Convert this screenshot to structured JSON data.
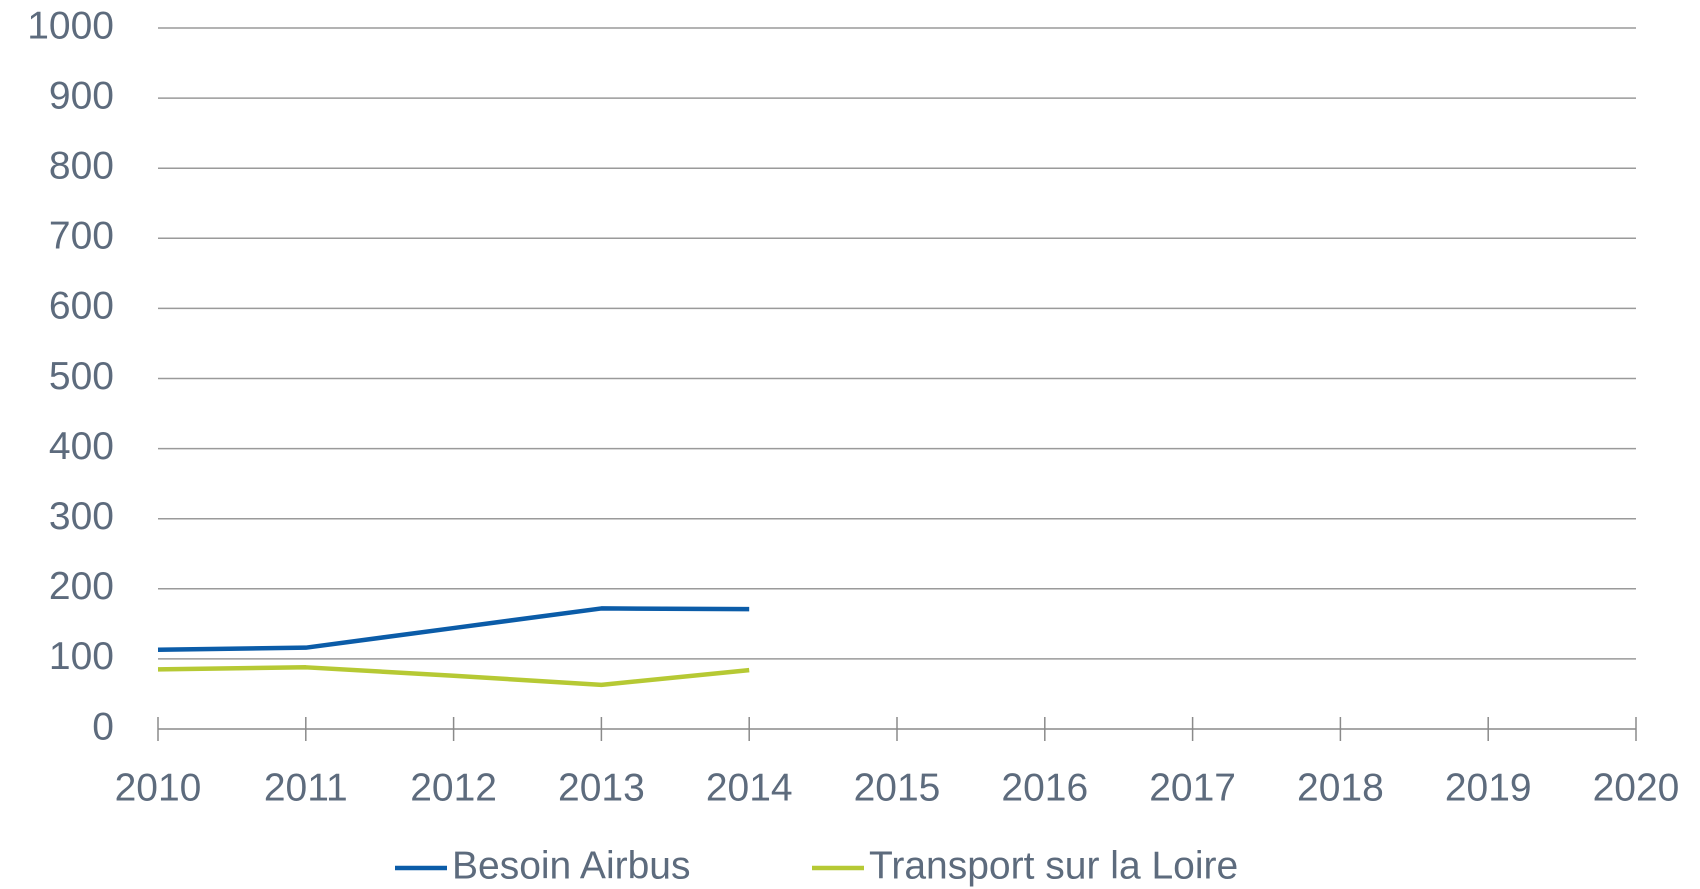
{
  "chart_data": {
    "type": "line",
    "x": [
      2010,
      2011,
      2012,
      2013,
      2014
    ],
    "series": [
      {
        "name": "Besoin Airbus",
        "color": "#0b5ca8",
        "values": [
          113,
          116,
          144,
          172,
          171
        ]
      },
      {
        "name": "Transport sur la Loire",
        "color": "#b6c934",
        "values": [
          85,
          88,
          76,
          63,
          84
        ]
      }
    ],
    "xlim": [
      2010,
      2020
    ],
    "xticks": [
      2010,
      2011,
      2012,
      2013,
      2014,
      2015,
      2016,
      2017,
      2018,
      2019,
      2020
    ],
    "ylim": [
      0,
      1000
    ],
    "yticks": [
      0,
      100,
      200,
      300,
      400,
      500,
      600,
      700,
      800,
      900,
      1000
    ],
    "grid": true,
    "legend": "bottom"
  }
}
